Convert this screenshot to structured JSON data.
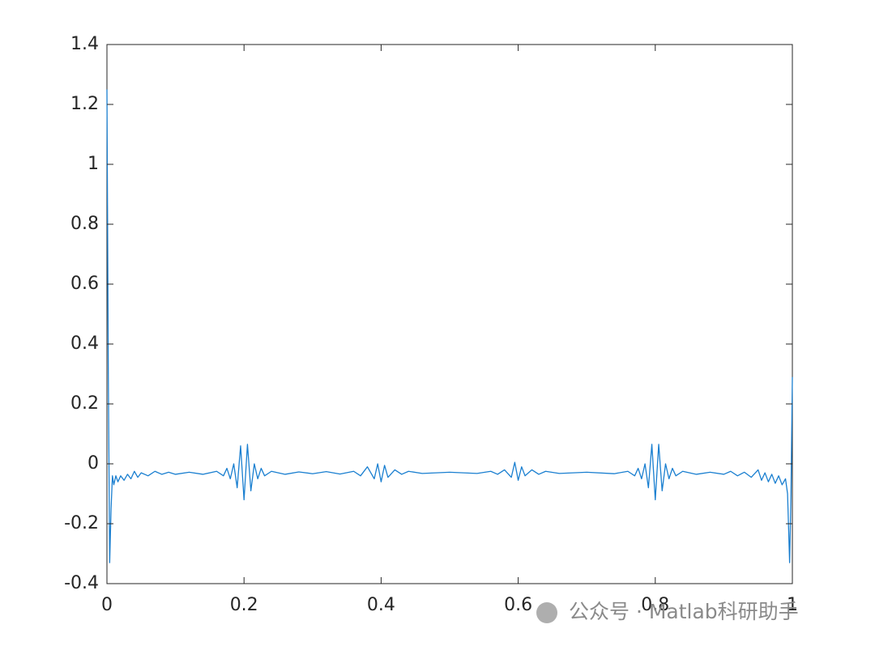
{
  "chart_data": {
    "type": "line",
    "x": [
      0,
      0.002,
      0.004,
      0.006,
      0.008,
      0.01,
      0.013,
      0.016,
      0.02,
      0.025,
      0.03,
      0.035,
      0.04,
      0.045,
      0.05,
      0.06,
      0.07,
      0.08,
      0.09,
      0.1,
      0.12,
      0.14,
      0.16,
      0.17,
      0.175,
      0.18,
      0.185,
      0.19,
      0.195,
      0.2,
      0.205,
      0.21,
      0.215,
      0.22,
      0.225,
      0.23,
      0.24,
      0.26,
      0.28,
      0.3,
      0.32,
      0.34,
      0.36,
      0.37,
      0.38,
      0.39,
      0.395,
      0.4,
      0.405,
      0.41,
      0.42,
      0.43,
      0.44,
      0.46,
      0.5,
      0.54,
      0.56,
      0.57,
      0.58,
      0.59,
      0.595,
      0.6,
      0.605,
      0.61,
      0.62,
      0.63,
      0.64,
      0.66,
      0.7,
      0.74,
      0.76,
      0.77,
      0.775,
      0.78,
      0.785,
      0.79,
      0.795,
      0.8,
      0.805,
      0.81,
      0.815,
      0.82,
      0.825,
      0.83,
      0.84,
      0.86,
      0.88,
      0.9,
      0.91,
      0.92,
      0.93,
      0.94,
      0.95,
      0.955,
      0.96,
      0.965,
      0.97,
      0.975,
      0.98,
      0.985,
      0.99,
      0.993,
      0.996,
      0.998,
      1
    ],
    "series": [
      {
        "color": "#1a7fd0",
        "values": [
          1.25,
          0.3,
          -0.33,
          -0.15,
          -0.04,
          -0.07,
          -0.04,
          -0.06,
          -0.04,
          -0.055,
          -0.035,
          -0.05,
          -0.025,
          -0.045,
          -0.03,
          -0.04,
          -0.025,
          -0.035,
          -0.028,
          -0.035,
          -0.028,
          -0.035,
          -0.025,
          -0.04,
          -0.015,
          -0.05,
          0.0,
          -0.08,
          0.06,
          -0.12,
          0.065,
          -0.09,
          0.0,
          -0.05,
          -0.015,
          -0.04,
          -0.025,
          -0.035,
          -0.027,
          -0.033,
          -0.026,
          -0.034,
          -0.025,
          -0.04,
          -0.01,
          -0.05,
          0.0,
          -0.06,
          -0.005,
          -0.045,
          -0.02,
          -0.035,
          -0.025,
          -0.032,
          -0.028,
          -0.032,
          -0.025,
          -0.035,
          -0.02,
          -0.045,
          0.005,
          -0.055,
          -0.01,
          -0.04,
          -0.02,
          -0.035,
          -0.025,
          -0.032,
          -0.028,
          -0.033,
          -0.025,
          -0.04,
          -0.015,
          -0.05,
          0.0,
          -0.08,
          0.065,
          -0.12,
          0.065,
          -0.09,
          0.0,
          -0.05,
          -0.015,
          -0.04,
          -0.025,
          -0.035,
          -0.028,
          -0.035,
          -0.025,
          -0.04,
          -0.028,
          -0.045,
          -0.02,
          -0.055,
          -0.03,
          -0.06,
          -0.035,
          -0.065,
          -0.04,
          -0.07,
          -0.05,
          -0.1,
          -0.33,
          -0.1,
          0.29
        ]
      }
    ],
    "xlim": [
      0,
      1
    ],
    "xticks": [
      0,
      0.2,
      0.4,
      0.6,
      0.8,
      1
    ],
    "ylim": [
      -0.4,
      1.4
    ],
    "yticks": [
      -0.4,
      -0.2,
      0,
      0.2,
      0.4,
      0.6,
      0.8,
      1,
      1.2,
      1.4
    ],
    "grid": false
  },
  "watermark": "公众号 · Matlab科研助手"
}
